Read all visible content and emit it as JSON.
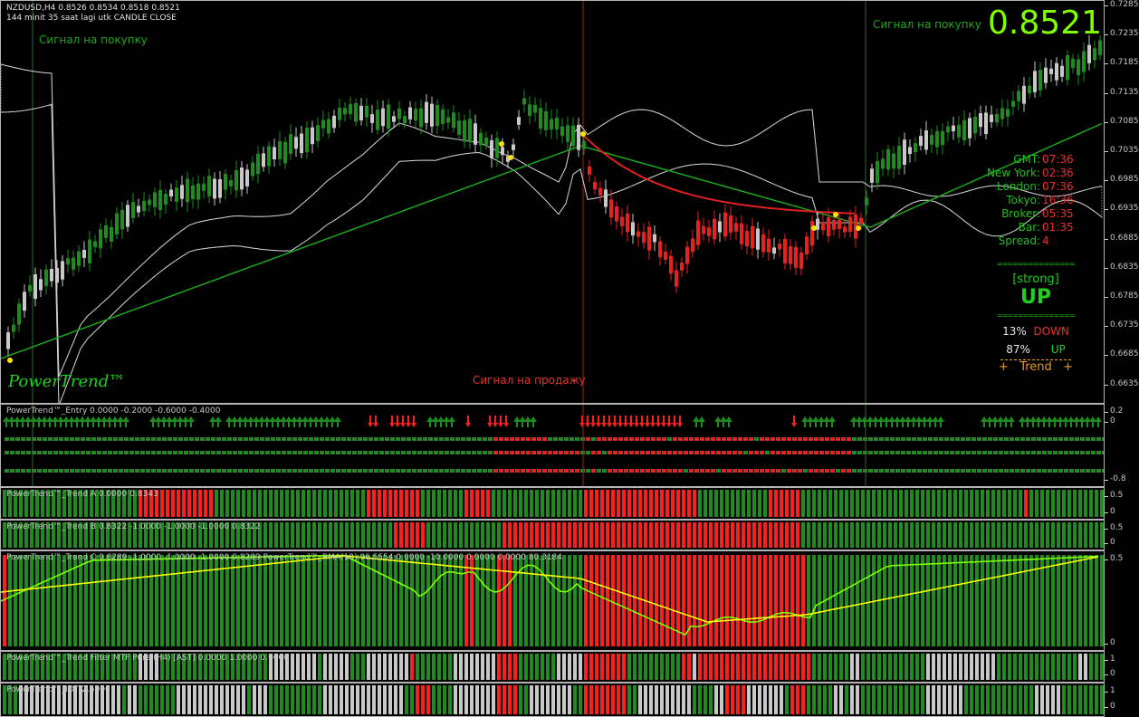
{
  "chart": {
    "symbol_line": "NZDUSD,H4  0.8526 0.8534 0.8518 0.8521",
    "timer_line": "144 minit 35 saat lagi utk CANDLE CLOSE",
    "big_price": "0.8521",
    "brand": "PowerTrend™",
    "signals": {
      "buy_left": "Сигнал на покупку",
      "buy_right": "Сигнал на покупку",
      "sell": "Сигнал на продажу"
    },
    "price_axis": [
      "0.7285",
      "0.7235",
      "0.7185",
      "0.7135",
      "0.7085",
      "0.7035",
      "0.6985",
      "0.6935",
      "0.6885",
      "0.6835",
      "0.6785",
      "0.6735",
      "0.6685",
      "0.6635"
    ],
    "colors": {
      "bull": "#1f8c1f",
      "bear": "#e8201e",
      "ma": "#1aa81a",
      "signal_line": "#e02020",
      "accent": "#7fff00"
    }
  },
  "info_panel": {
    "rows": [
      {
        "label": "GMT:",
        "value": "07:36"
      },
      {
        "label": "New York:",
        "value": "02:36"
      },
      {
        "label": "London:",
        "value": "07:36"
      },
      {
        "label": "Tokyo:",
        "value": "16:36"
      },
      {
        "label": "Broker:",
        "value": "05:35"
      },
      {
        "label": "Bar:",
        "value": "01:35"
      },
      {
        "label": "Spread:",
        "value": "4"
      }
    ],
    "divider": "====================",
    "strength": "[strong]",
    "direction": "UP",
    "down_pct": "13%",
    "down_label": "DOWN",
    "up_pct": "87%",
    "up_label": "UP",
    "trend_label": "+   Trend   +"
  },
  "indicators": [
    {
      "title": "PowerTrend™_Entry 0.0000 -0.2000 -0.6000 -0.4000",
      "axis": [
        "0.2",
        "0",
        "-0.8"
      ]
    },
    {
      "title": "PowerTrend™_Trend A 0.0000 0.8343",
      "axis": [
        "0.5",
        "0"
      ]
    },
    {
      "title": "PowerTrend™_Trend B 0.8322 -1.0000 -1.0000 -1.0000 0.8322",
      "axis": [
        "0.5",
        "0"
      ]
    },
    {
      "title": "PowerTrend™_Trend C 0.8289 -1.0000 -1.0000 -1.0000 0.8289 PowerTrend™_RMA(10) 96.5554 0.0000 -10.0000 0.0000 0.0000 80.3184",
      "axis": [
        "0.5",
        "0"
      ]
    },
    {
      "title": "PowerTrend™_Trend Filter MTF Pure (H4) [AST] 0.0000 1.0000 0.0000",
      "axis": [
        "1",
        "0"
      ]
    },
    {
      "title": "PowerTrend™_IDT 2.5000",
      "axis": [
        "1",
        "0"
      ]
    }
  ]
}
